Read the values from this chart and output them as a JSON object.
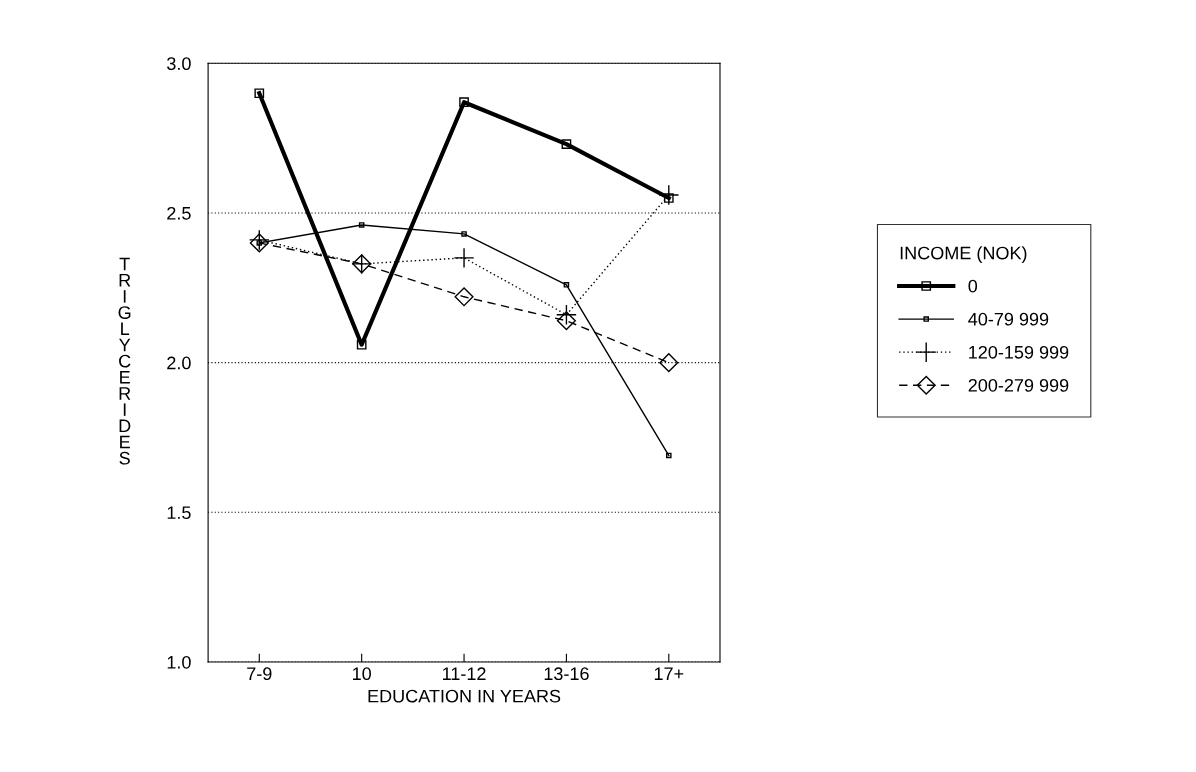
{
  "chart_data": {
    "type": "line",
    "xlabel": "EDUCATION IN YEARS",
    "ylabel": "TRIGLYCERIDES",
    "legend_title": "INCOME (NOK)",
    "categories": [
      "7-9",
      "10",
      "11-12",
      "13-16",
      "17+"
    ],
    "series": [
      {
        "name": "0",
        "color": "#000000",
        "values": [
          2.9,
          2.06,
          2.87,
          2.73,
          2.55
        ],
        "marker": "square",
        "line_style": "solid"
      },
      {
        "name": "40-79 999",
        "color": "#000000",
        "values": [
          2.4,
          2.46,
          2.43,
          2.26,
          1.69
        ],
        "marker": "square",
        "line_style": "solid"
      },
      {
        "name": "120-159 999",
        "color": "#000000",
        "values": [
          2.41,
          2.33,
          2.35,
          2.16,
          2.56
        ],
        "marker": "cross",
        "line_style": "dotted"
      },
      {
        "name": "200-279 999",
        "color": "#000000",
        "values": [
          2.4,
          2.33,
          2.22,
          2.14,
          2.0
        ],
        "marker": "diamond",
        "line_style": "dashed"
      }
    ],
    "ylim": [
      1.0,
      3.0
    ],
    "yticks": [
      {
        "value": 1.0,
        "label": "1.0"
      },
      {
        "value": 1.5,
        "label": "1.5"
      },
      {
        "value": 2.0,
        "label": "2.0"
      },
      {
        "value": 2.5,
        "label": "2.5"
      },
      {
        "value": 3.0,
        "label": "3.0"
      }
    ],
    "grid": "y",
    "legend": "right"
  }
}
